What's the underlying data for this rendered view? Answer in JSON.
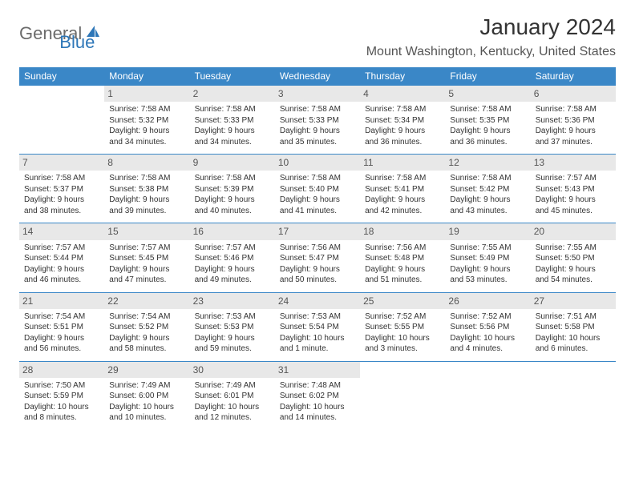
{
  "logo": {
    "general": "General",
    "blue": "Blue"
  },
  "title": "January 2024",
  "location": "Mount Washington, Kentucky, United States",
  "colors": {
    "header_bg": "#3a87c7",
    "header_text": "#ffffff",
    "daynum_bg": "#e8e8e8",
    "border": "#3a87c7",
    "logo_gray": "#6b6b6b",
    "logo_blue": "#2e77b8"
  },
  "weekdays": [
    "Sunday",
    "Monday",
    "Tuesday",
    "Wednesday",
    "Thursday",
    "Friday",
    "Saturday"
  ],
  "weeks": [
    [
      {
        "day": "",
        "sunrise": "",
        "sunset": "",
        "daylight": ""
      },
      {
        "day": "1",
        "sunrise": "Sunrise: 7:58 AM",
        "sunset": "Sunset: 5:32 PM",
        "daylight": "Daylight: 9 hours and 34 minutes."
      },
      {
        "day": "2",
        "sunrise": "Sunrise: 7:58 AM",
        "sunset": "Sunset: 5:33 PM",
        "daylight": "Daylight: 9 hours and 34 minutes."
      },
      {
        "day": "3",
        "sunrise": "Sunrise: 7:58 AM",
        "sunset": "Sunset: 5:33 PM",
        "daylight": "Daylight: 9 hours and 35 minutes."
      },
      {
        "day": "4",
        "sunrise": "Sunrise: 7:58 AM",
        "sunset": "Sunset: 5:34 PM",
        "daylight": "Daylight: 9 hours and 36 minutes."
      },
      {
        "day": "5",
        "sunrise": "Sunrise: 7:58 AM",
        "sunset": "Sunset: 5:35 PM",
        "daylight": "Daylight: 9 hours and 36 minutes."
      },
      {
        "day": "6",
        "sunrise": "Sunrise: 7:58 AM",
        "sunset": "Sunset: 5:36 PM",
        "daylight": "Daylight: 9 hours and 37 minutes."
      }
    ],
    [
      {
        "day": "7",
        "sunrise": "Sunrise: 7:58 AM",
        "sunset": "Sunset: 5:37 PM",
        "daylight": "Daylight: 9 hours and 38 minutes."
      },
      {
        "day": "8",
        "sunrise": "Sunrise: 7:58 AM",
        "sunset": "Sunset: 5:38 PM",
        "daylight": "Daylight: 9 hours and 39 minutes."
      },
      {
        "day": "9",
        "sunrise": "Sunrise: 7:58 AM",
        "sunset": "Sunset: 5:39 PM",
        "daylight": "Daylight: 9 hours and 40 minutes."
      },
      {
        "day": "10",
        "sunrise": "Sunrise: 7:58 AM",
        "sunset": "Sunset: 5:40 PM",
        "daylight": "Daylight: 9 hours and 41 minutes."
      },
      {
        "day": "11",
        "sunrise": "Sunrise: 7:58 AM",
        "sunset": "Sunset: 5:41 PM",
        "daylight": "Daylight: 9 hours and 42 minutes."
      },
      {
        "day": "12",
        "sunrise": "Sunrise: 7:58 AM",
        "sunset": "Sunset: 5:42 PM",
        "daylight": "Daylight: 9 hours and 43 minutes."
      },
      {
        "day": "13",
        "sunrise": "Sunrise: 7:57 AM",
        "sunset": "Sunset: 5:43 PM",
        "daylight": "Daylight: 9 hours and 45 minutes."
      }
    ],
    [
      {
        "day": "14",
        "sunrise": "Sunrise: 7:57 AM",
        "sunset": "Sunset: 5:44 PM",
        "daylight": "Daylight: 9 hours and 46 minutes."
      },
      {
        "day": "15",
        "sunrise": "Sunrise: 7:57 AM",
        "sunset": "Sunset: 5:45 PM",
        "daylight": "Daylight: 9 hours and 47 minutes."
      },
      {
        "day": "16",
        "sunrise": "Sunrise: 7:57 AM",
        "sunset": "Sunset: 5:46 PM",
        "daylight": "Daylight: 9 hours and 49 minutes."
      },
      {
        "day": "17",
        "sunrise": "Sunrise: 7:56 AM",
        "sunset": "Sunset: 5:47 PM",
        "daylight": "Daylight: 9 hours and 50 minutes."
      },
      {
        "day": "18",
        "sunrise": "Sunrise: 7:56 AM",
        "sunset": "Sunset: 5:48 PM",
        "daylight": "Daylight: 9 hours and 51 minutes."
      },
      {
        "day": "19",
        "sunrise": "Sunrise: 7:55 AM",
        "sunset": "Sunset: 5:49 PM",
        "daylight": "Daylight: 9 hours and 53 minutes."
      },
      {
        "day": "20",
        "sunrise": "Sunrise: 7:55 AM",
        "sunset": "Sunset: 5:50 PM",
        "daylight": "Daylight: 9 hours and 54 minutes."
      }
    ],
    [
      {
        "day": "21",
        "sunrise": "Sunrise: 7:54 AM",
        "sunset": "Sunset: 5:51 PM",
        "daylight": "Daylight: 9 hours and 56 minutes."
      },
      {
        "day": "22",
        "sunrise": "Sunrise: 7:54 AM",
        "sunset": "Sunset: 5:52 PM",
        "daylight": "Daylight: 9 hours and 58 minutes."
      },
      {
        "day": "23",
        "sunrise": "Sunrise: 7:53 AM",
        "sunset": "Sunset: 5:53 PM",
        "daylight": "Daylight: 9 hours and 59 minutes."
      },
      {
        "day": "24",
        "sunrise": "Sunrise: 7:53 AM",
        "sunset": "Sunset: 5:54 PM",
        "daylight": "Daylight: 10 hours and 1 minute."
      },
      {
        "day": "25",
        "sunrise": "Sunrise: 7:52 AM",
        "sunset": "Sunset: 5:55 PM",
        "daylight": "Daylight: 10 hours and 3 minutes."
      },
      {
        "day": "26",
        "sunrise": "Sunrise: 7:52 AM",
        "sunset": "Sunset: 5:56 PM",
        "daylight": "Daylight: 10 hours and 4 minutes."
      },
      {
        "day": "27",
        "sunrise": "Sunrise: 7:51 AM",
        "sunset": "Sunset: 5:58 PM",
        "daylight": "Daylight: 10 hours and 6 minutes."
      }
    ],
    [
      {
        "day": "28",
        "sunrise": "Sunrise: 7:50 AM",
        "sunset": "Sunset: 5:59 PM",
        "daylight": "Daylight: 10 hours and 8 minutes."
      },
      {
        "day": "29",
        "sunrise": "Sunrise: 7:49 AM",
        "sunset": "Sunset: 6:00 PM",
        "daylight": "Daylight: 10 hours and 10 minutes."
      },
      {
        "day": "30",
        "sunrise": "Sunrise: 7:49 AM",
        "sunset": "Sunset: 6:01 PM",
        "daylight": "Daylight: 10 hours and 12 minutes."
      },
      {
        "day": "31",
        "sunrise": "Sunrise: 7:48 AM",
        "sunset": "Sunset: 6:02 PM",
        "daylight": "Daylight: 10 hours and 14 minutes."
      },
      {
        "day": "",
        "sunrise": "",
        "sunset": "",
        "daylight": ""
      },
      {
        "day": "",
        "sunrise": "",
        "sunset": "",
        "daylight": ""
      },
      {
        "day": "",
        "sunrise": "",
        "sunset": "",
        "daylight": ""
      }
    ]
  ]
}
